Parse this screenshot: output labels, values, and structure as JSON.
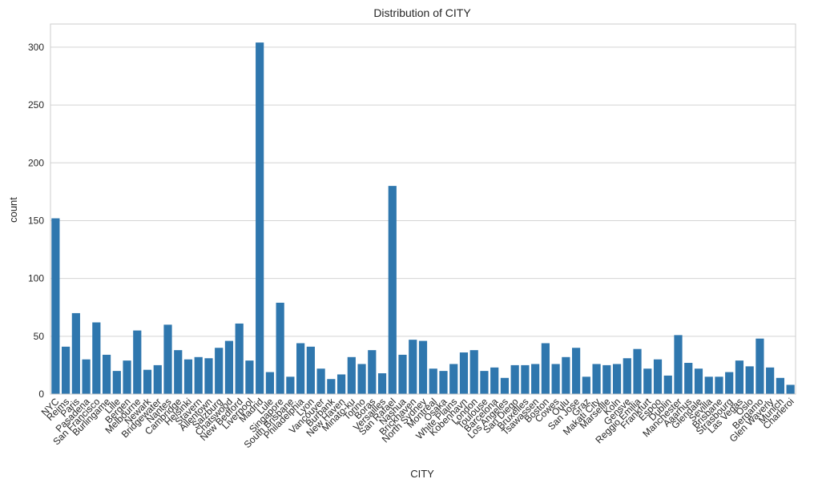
{
  "colors": {
    "bar": "#2f77ae",
    "grid": "#d4d4d4",
    "frame": "#cccccc",
    "text": "#262626"
  },
  "chart_data": {
    "type": "bar",
    "title": "Distribution of CITY",
    "xlabel": "CITY",
    "ylabel": "count",
    "ylim": [
      0,
      320
    ],
    "yticks": [
      0,
      50,
      100,
      150,
      200,
      250,
      300
    ],
    "grid": "horizontal",
    "categories": [
      "NYC",
      "Reims",
      "Paris",
      "Pasadena",
      "San Francisco",
      "Burlingame",
      "Lille",
      "Bergen",
      "Melbourne",
      "Newark",
      "Bridgewater",
      "Nantes",
      "Cambridge",
      "Helsinki",
      "Stavern",
      "Allentown",
      "Salzburg",
      "Chatswood",
      "New Bedford",
      "Liverpool",
      "Madrid",
      "Lule",
      "Singapore",
      "South Brisbane",
      "Philadelphia",
      "Lyon",
      "Vancouver",
      "Burbank",
      "New Haven",
      "Minato-ku",
      "Torino",
      "Boras",
      "Versailles",
      "San Rafael",
      "Nashua",
      "Brickhaven",
      "North Sydney",
      "Montreal",
      "Osaka",
      "White Plains",
      "Kobenhavn",
      "London",
      "Toulouse",
      "Barcelona",
      "Los Angeles",
      "San Diego",
      "Bruxelles",
      "Tsawassen",
      "Boston",
      "Cowes",
      "Oulu",
      "San Jose",
      "Graz",
      "Makati City",
      "Marseille",
      "Koln",
      "Gensve",
      "Reggio Emilia",
      "Frankfurt",
      "Espoo",
      "Dublin",
      "Manchester",
      "Aaarhus",
      "Glendale",
      "Sevilla",
      "Brisbane",
      "Strasbourg",
      "Las Vegas",
      "Oslo",
      "Bergamo",
      "Glen Waverly",
      "Munich",
      "Charleroi"
    ],
    "tick_labels": [
      "NYC",
      "Reims",
      "Paris",
      "Pasadena",
      "San Francisco",
      "Burlingame",
      "Lille",
      "Bergen",
      "Melbourne",
      "Newark",
      "Bridgewater",
      "Nantes",
      "Cambridge",
      "Helsinki",
      "Stavern",
      "Allentown",
      "Salzburg",
      "Chatswood",
      "New Bedford",
      "Liverpool",
      "Madrid",
      "Lule",
      "Singapore",
      "South Brisbane",
      "Philadelphia",
      "Lyon",
      "Vancouver",
      "Burbank",
      "New Haven",
      "Minato-ku",
      "Torino",
      "Boras",
      "Versailles",
      "San Rafael",
      "Nashua",
      "Brickhaven",
      "North Sydney",
      "Montreal",
      "Osaka",
      "White Plains",
      "Kobenhavn",
      "London",
      "Toulouse",
      "Barcelona",
      "Los Angeles",
      "San Diego",
      "Bruxelles",
      "Tsawassen",
      "Boston",
      "Cowes",
      "Oulu",
      "San Jose",
      "Graz",
      "Makati City",
      "Marseille",
      "Koln",
      "Gensve",
      "Reggio Emilia",
      "Frankfurt",
      "Espoo",
      "Dublin",
      "Manchester",
      "Aaarhus",
      "Glendale",
      "Sevilla",
      "Brisbane",
      "Strasbourg",
      "Las Vegas",
      "Oslo",
      "Bergamo",
      "Glen Waverly",
      "Munich",
      "Charleroi"
    ],
    "values": [
      152,
      41,
      70,
      30,
      62,
      34,
      20,
      29,
      55,
      21,
      25,
      60,
      38,
      30,
      32,
      31,
      40,
      46,
      61,
      29,
      304,
      19,
      79,
      15,
      44,
      41,
      22,
      13,
      17,
      32,
      26,
      38,
      18,
      180,
      34,
      47,
      46,
      22,
      20,
      26,
      36,
      38,
      20,
      23,
      14,
      25,
      25,
      26,
      44,
      26,
      32,
      40,
      15,
      26,
      25,
      26,
      31,
      39,
      22,
      30,
      16,
      51,
      27,
      22,
      15,
      15,
      19,
      29,
      24,
      48,
      23,
      14,
      8
    ]
  }
}
